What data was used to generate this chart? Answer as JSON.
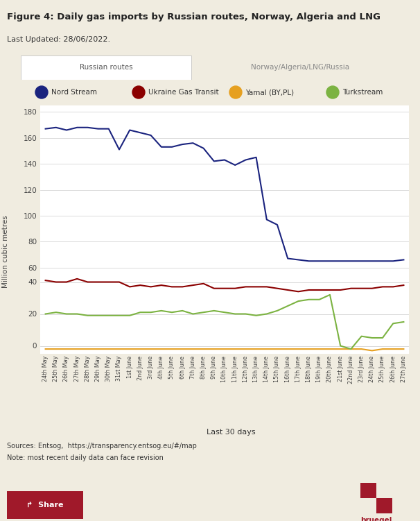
{
  "title": "Figure 4: Daily gas imports by Russian routes, Norway, Algeria and LNG",
  "subtitle": "Last Updated: 28/06/2022.",
  "tab1": "Russian routes",
  "tab2": "Norway/Algeria/LNG/Russia",
  "xlabel": "Last 30 days",
  "ylabel": "Million cubic metres",
  "sources": "Sources: Entsog,  https://transparency.entsog.eu/#/map",
  "note": "Note: most recent daily data can face revision",
  "bg_color": "#f0ece0",
  "chart_bg": "#ffffff",
  "x_labels": [
    "24th May",
    "25th May",
    "26th May",
    "27th May",
    "28th May",
    "29th May",
    "30th May",
    "31st May",
    "1st June",
    "2nd June",
    "3rd June",
    "4th June",
    "5th June",
    "6th June",
    "7th June",
    "8th June",
    "9th June",
    "10th June",
    "11th June",
    "12th June",
    "13th June",
    "14th June",
    "15th June",
    "16th June",
    "17th June",
    "18th June",
    "19th June",
    "20th June",
    "21st June",
    "22nd June",
    "23rd June",
    "24th June",
    "25th June",
    "26th June",
    "27th June"
  ],
  "nord_stream": [
    167,
    168,
    166,
    168,
    168,
    167,
    167,
    151,
    166,
    164,
    162,
    153,
    153,
    155,
    156,
    152,
    142,
    143,
    139,
    143,
    145,
    97,
    93,
    67,
    66,
    65,
    65,
    65,
    65,
    65,
    65,
    65,
    65,
    65,
    66
  ],
  "ukraine_gas": [
    41,
    40,
    40,
    42,
    40,
    40,
    40,
    40,
    37,
    38,
    37,
    38,
    37,
    37,
    38,
    39,
    36,
    36,
    36,
    37,
    37,
    37,
    36,
    35,
    34,
    35,
    35,
    35,
    35,
    36,
    36,
    36,
    37,
    37,
    38
  ],
  "yamal": [
    -2,
    -2,
    -2,
    -2,
    -2,
    -2,
    -2,
    -2,
    -2,
    -2,
    -2,
    -2,
    -2,
    -2,
    -2,
    -2,
    -2,
    -2,
    -2,
    -2,
    -2,
    -2,
    -2,
    -2,
    -2,
    -2,
    -2,
    -2,
    -2,
    -2,
    -2,
    -3,
    -2,
    -2,
    -2
  ],
  "turkstream": [
    20,
    21,
    20,
    20,
    19,
    19,
    19,
    19,
    19,
    21,
    21,
    22,
    21,
    22,
    20,
    21,
    22,
    21,
    20,
    20,
    19,
    20,
    22,
    25,
    28,
    29,
    29,
    32,
    0,
    -2,
    6,
    5,
    5,
    14,
    15
  ],
  "nord_color": "#1a237e",
  "ukraine_color": "#8b0000",
  "yamal_color": "#e6a020",
  "turkstream_color": "#7cb342",
  "grid_color": "#cccccc",
  "yticks_main": [
    60,
    80,
    100,
    120,
    140,
    160,
    180
  ],
  "yticks_lower": [
    0,
    20,
    40
  ],
  "ylim_main": [
    55,
    185
  ],
  "ylim_lower": [
    -5,
    45
  ]
}
